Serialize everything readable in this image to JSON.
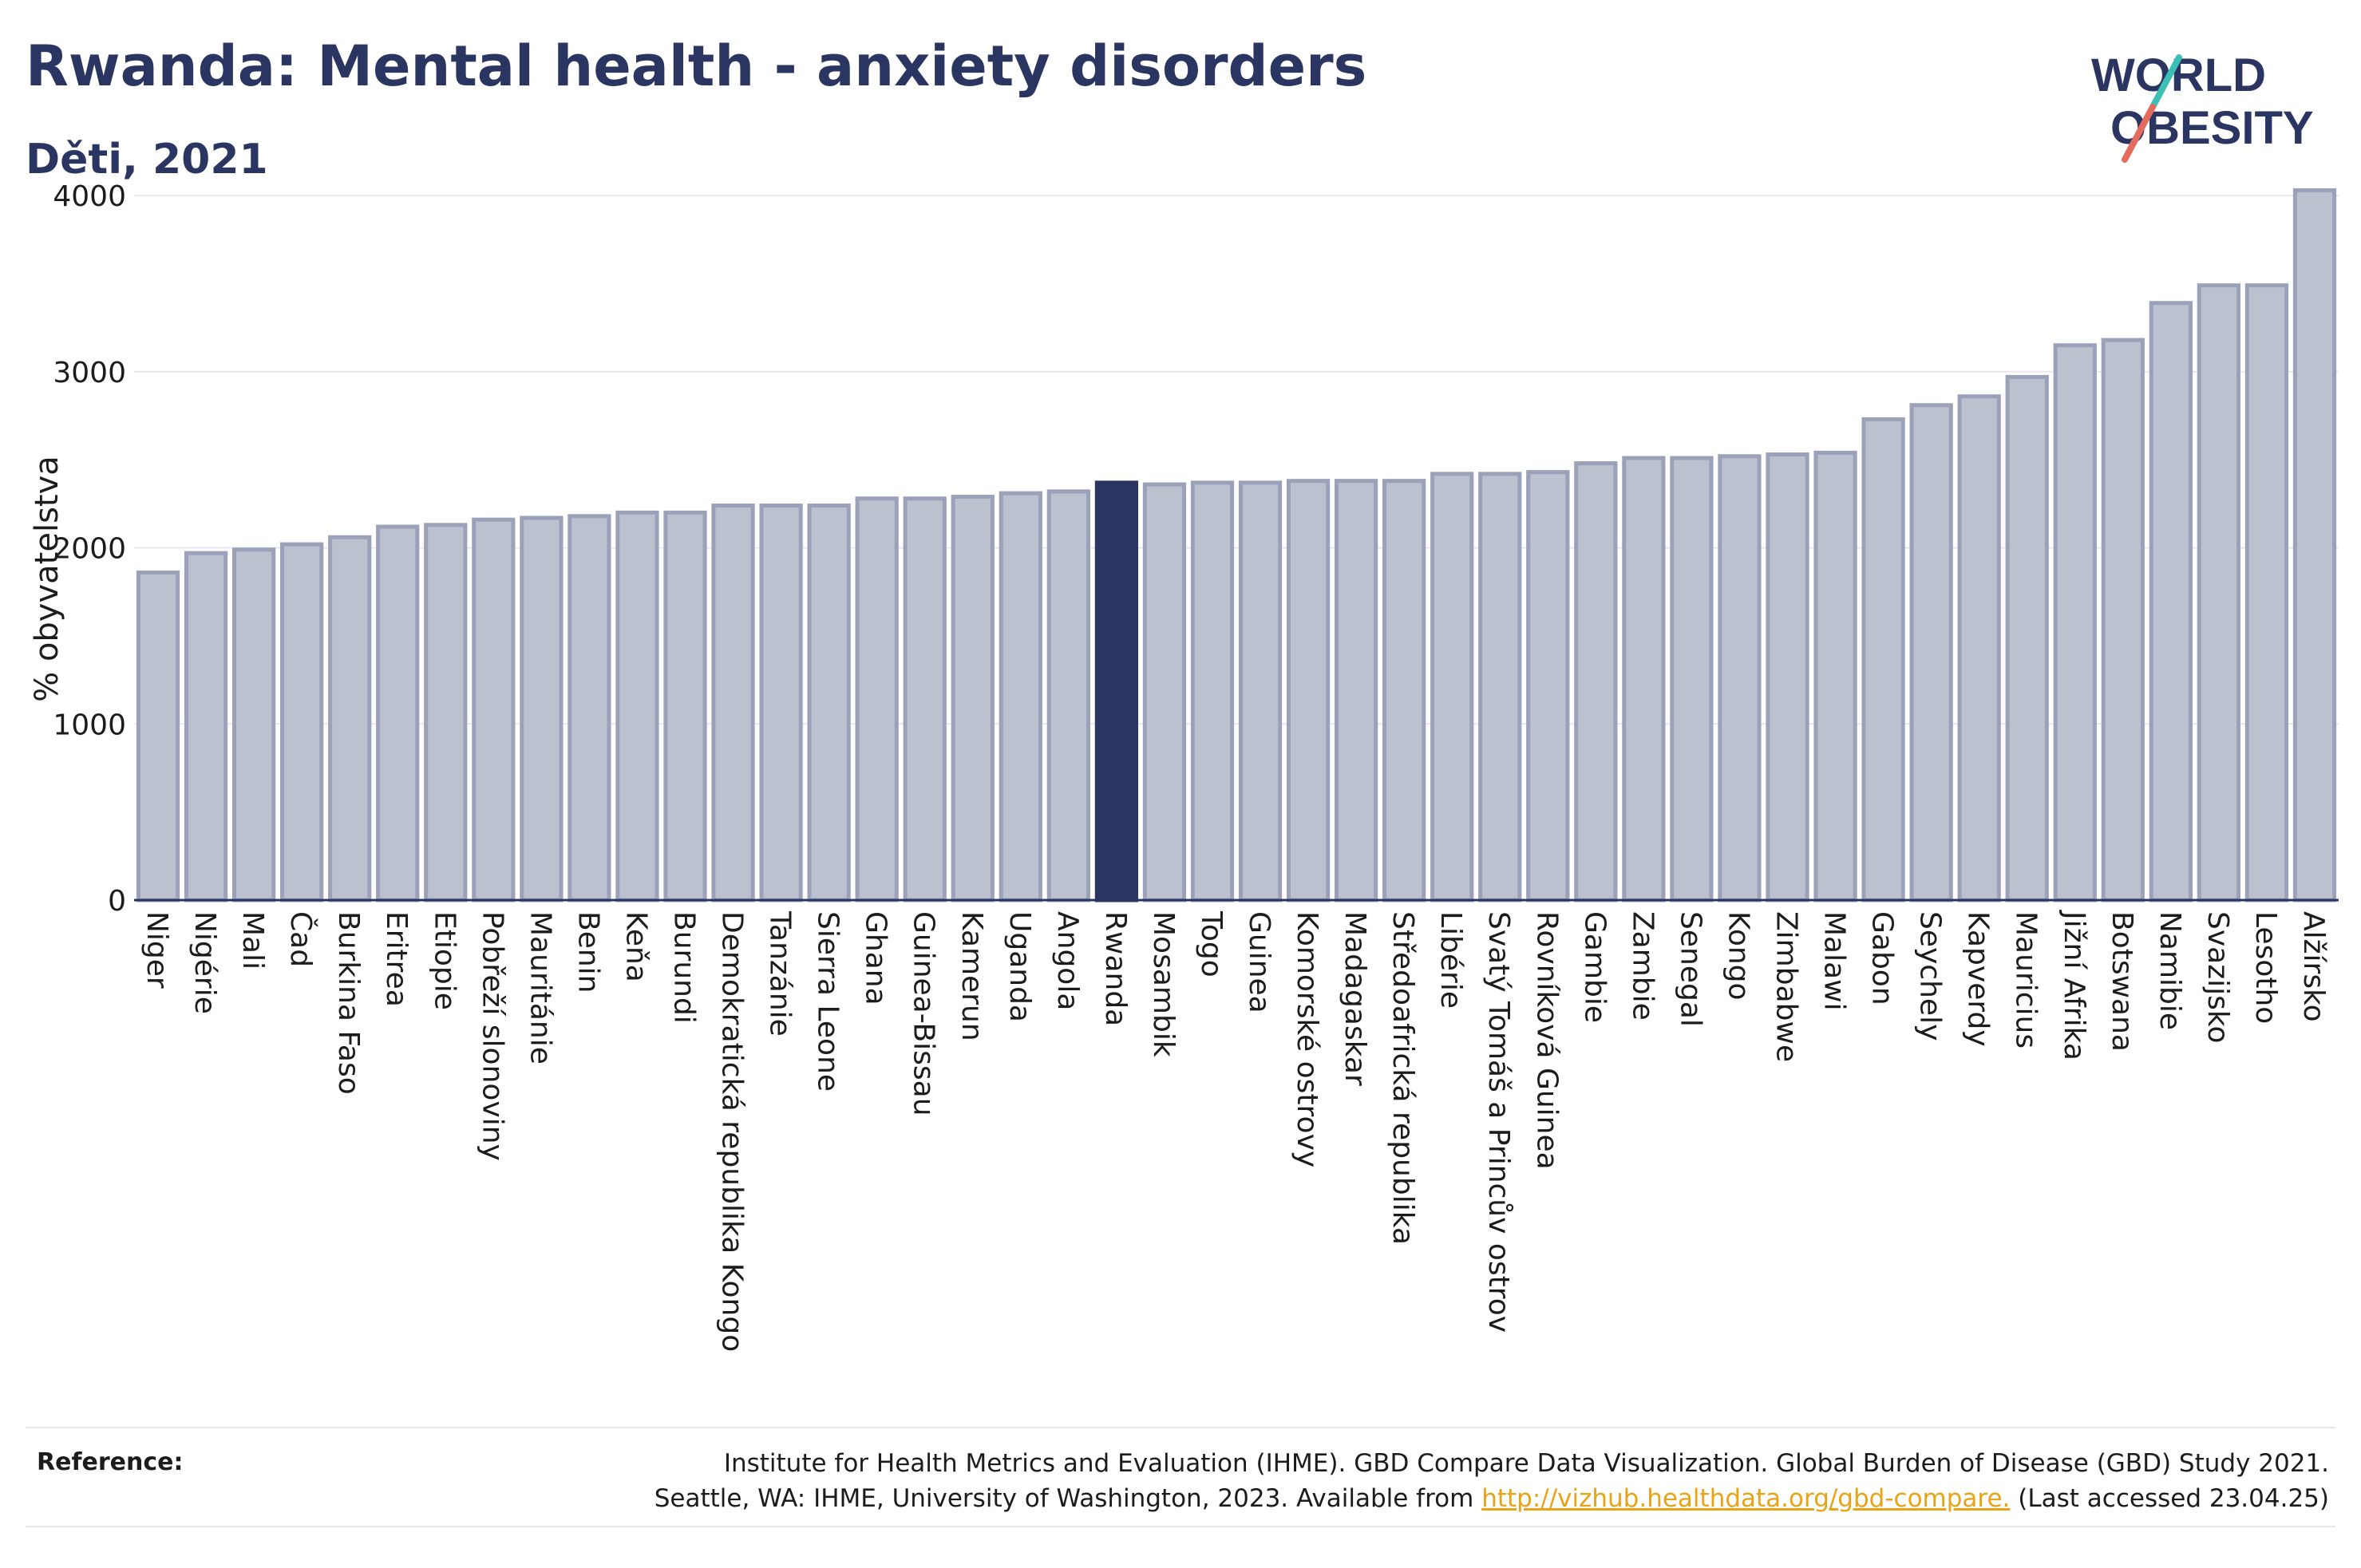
{
  "title": "Rwanda: Mental health - anxiety disorders",
  "subtitle": "Děti, 2021",
  "logo": {
    "line1": "WORLD",
    "line2": "OBESITY",
    "slash_colors": [
      "#3cbfb4",
      "#e56b5d"
    ]
  },
  "reference": {
    "label": "Reference:",
    "line1": "Institute for Health Metrics and Evaluation (IHME). GBD Compare Data Visualization. Global Burden of Disease (GBD) Study 2021.",
    "line2_prefix": "Seattle, WA: IHME, University of Washington, 2023. Available from ",
    "link": "http://vizhub.healthdata.org/gbd-compare.",
    "line2_suffix": " (Last accessed 23.04.25)"
  },
  "colors": {
    "bar": "#bcc1cf",
    "bar_edge": "#9aa1b8",
    "highlight": "#2b3561",
    "title": "#2b3561",
    "grid": "#e6e8ef",
    "link": "#e8a317"
  },
  "chart_data": {
    "type": "bar",
    "ylabel": "% obyvatelstva",
    "xlabel": "",
    "ylim": [
      0,
      4100
    ],
    "yticks": [
      0,
      1000,
      2000,
      3000,
      4000
    ],
    "grid": true,
    "highlight": "Rwanda",
    "categories": [
      "Niger",
      "Nigérie",
      "Mali",
      "Čad",
      "Burkina Faso",
      "Eritrea",
      "Etiopie",
      "Pobřeží slonoviny",
      "Mauritánie",
      "Benin",
      "Keňa",
      "Burundi",
      "Demokratická republika Kongo",
      "Tanzánie",
      "Sierra Leone",
      "Ghana",
      "Guinea-Bissau",
      "Kamerun",
      "Uganda",
      "Angola",
      "Rwanda",
      "Mosambik",
      "Togo",
      "Guinea",
      "Komorské ostrovy",
      "Madagaskar",
      "Středoafrická republika",
      "Libérie",
      "Svatý Tomáš a Princův ostrov",
      "Rovníková Guinea",
      "Gambie",
      "Zambie",
      "Senegal",
      "Kongo",
      "Zimbabwe",
      "Malawi",
      "Gabon",
      "Seychely",
      "Kapverdy",
      "Mauricius",
      "Jižní Afrika",
      "Botswana",
      "Namibie",
      "Svazijsko",
      "Lesotho",
      "Alžírsko"
    ],
    "values": [
      1860,
      1970,
      1990,
      2020,
      2060,
      2120,
      2130,
      2160,
      2170,
      2180,
      2200,
      2200,
      2240,
      2240,
      2240,
      2280,
      2280,
      2290,
      2310,
      2320,
      2370,
      2360,
      2370,
      2370,
      2380,
      2380,
      2380,
      2420,
      2420,
      2430,
      2480,
      2510,
      2510,
      2520,
      2530,
      2540,
      2730,
      2810,
      2860,
      2970,
      3150,
      3180,
      3390,
      3490,
      3490,
      4030
    ]
  }
}
